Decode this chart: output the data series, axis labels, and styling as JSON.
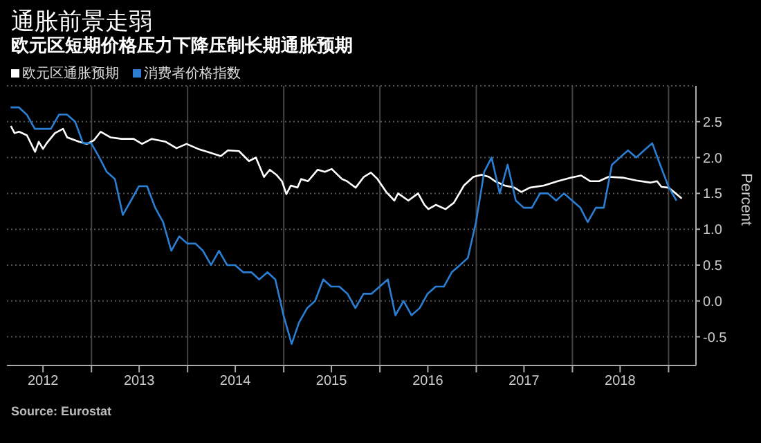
{
  "chart_data": {
    "type": "line",
    "title": "通胀前景走弱",
    "subtitle": "欧元区短期价格压力下降压制长期通胀预期",
    "ylabel": "Percent",
    "annotations": [
      "Source: Eurostat"
    ],
    "legend": "top left",
    "grid": true,
    "marker": "none",
    "line_style": "solid",
    "xlim": [
      "2012-02-15",
      "2019-04-15"
    ],
    "xticks": [
      {
        "value": "2012-07-01",
        "label": "2012"
      },
      {
        "value": "2013-01-01",
        "label": null
      },
      {
        "value": "2013-07-01",
        "label": "2013"
      },
      {
        "value": "2014-01-01",
        "label": null
      },
      {
        "value": "2014-07-01",
        "label": "2014"
      },
      {
        "value": "2015-01-01",
        "label": null
      },
      {
        "value": "2015-07-01",
        "label": "2015"
      },
      {
        "value": "2016-01-01",
        "label": null
      },
      {
        "value": "2016-07-01",
        "label": "2016"
      },
      {
        "value": "2017-01-01",
        "label": null
      },
      {
        "value": "2017-07-01",
        "label": "2017"
      },
      {
        "value": "2018-01-01",
        "label": null
      },
      {
        "value": "2018-07-01",
        "label": "2018"
      },
      {
        "value": "2019-01-01",
        "label": null
      }
    ],
    "ylim": [
      -0.9,
      3.0
    ],
    "yticks": [
      {
        "value": -0.5,
        "label": "-0.5"
      },
      {
        "value": 0,
        "label": "0.0"
      },
      {
        "value": 0.5,
        "label": "0.5"
      },
      {
        "value": 1,
        "label": "1.0"
      },
      {
        "value": 1.5,
        "label": "1.5"
      },
      {
        "value": 2,
        "label": "2.0"
      },
      {
        "value": 2.5,
        "label": "2.5"
      }
    ],
    "series": [
      {
        "name": "欧元区通胀预期",
        "color": "#ffffff",
        "x": [
          "2012-03-01",
          "2012-03-15",
          "2012-04-01",
          "2012-05-01",
          "2012-06-01",
          "2012-06-15",
          "2012-07-01",
          "2012-07-15",
          "2012-08-15",
          "2012-09-15",
          "2012-10-01",
          "2012-11-15",
          "2012-12-15",
          "2013-01-10",
          "2013-02-05",
          "2013-03-15",
          "2013-04-25",
          "2013-06-10",
          "2013-07-12",
          "2013-08-18",
          "2013-10-10",
          "2013-11-20",
          "2013-12-28",
          "2014-02-10",
          "2014-03-25",
          "2014-05-07",
          "2014-06-03",
          "2014-07-15",
          "2014-08-22",
          "2014-09-17",
          "2014-10-18",
          "2014-11-09",
          "2014-12-04",
          "2014-12-25",
          "2015-01-11",
          "2015-01-28",
          "2015-02-22",
          "2015-03-08",
          "2015-04-03",
          "2015-05-10",
          "2015-06-06",
          "2015-07-02",
          "2015-08-10",
          "2015-08-29",
          "2015-10-01",
          "2015-11-01",
          "2015-11-28",
          "2015-12-23",
          "2016-01-25",
          "2016-02-25",
          "2016-03-10",
          "2016-04-18",
          "2016-05-25",
          "2016-06-18",
          "2016-07-03",
          "2016-08-01",
          "2016-09-06",
          "2016-10-08",
          "2016-11-15",
          "2016-12-21",
          "2017-01-21",
          "2017-02-18",
          "2017-03-13",
          "2017-04-18",
          "2017-05-26",
          "2017-06-21",
          "2017-07-23",
          "2017-09-15",
          "2017-11-06",
          "2017-12-28",
          "2018-02-03",
          "2018-03-10",
          "2018-04-12",
          "2018-05-18",
          "2018-07-10",
          "2018-09-01",
          "2018-10-25",
          "2018-11-18",
          "2018-12-05",
          "2019-01-01",
          "2019-01-28",
          "2019-02-20"
        ],
        "values": [
          2.44,
          2.34,
          2.36,
          2.31,
          2.08,
          2.22,
          2.12,
          2.2,
          2.34,
          2.4,
          2.28,
          2.22,
          2.19,
          2.24,
          2.36,
          2.28,
          2.26,
          2.26,
          2.19,
          2.26,
          2.22,
          2.13,
          2.19,
          2.12,
          2.07,
          2.02,
          2.1,
          2.09,
          1.95,
          2.0,
          1.73,
          1.83,
          1.76,
          1.67,
          1.49,
          1.61,
          1.58,
          1.7,
          1.67,
          1.83,
          1.8,
          1.84,
          1.7,
          1.67,
          1.58,
          1.73,
          1.79,
          1.7,
          1.52,
          1.4,
          1.5,
          1.4,
          1.5,
          1.34,
          1.28,
          1.34,
          1.28,
          1.37,
          1.61,
          1.73,
          1.76,
          1.73,
          1.67,
          1.61,
          1.58,
          1.52,
          1.58,
          1.61,
          1.67,
          1.72,
          1.75,
          1.67,
          1.67,
          1.73,
          1.72,
          1.68,
          1.65,
          1.67,
          1.59,
          1.58,
          1.5,
          1.43
        ]
      },
      {
        "name": "消费者价格指数",
        "color": "#2a7fd4",
        "x": [
          "2012-02-29",
          "2012-03-31",
          "2012-04-30",
          "2012-05-31",
          "2012-06-30",
          "2012-07-31",
          "2012-08-31",
          "2012-09-30",
          "2012-10-31",
          "2012-11-30",
          "2012-12-31",
          "2013-01-31",
          "2013-02-28",
          "2013-03-31",
          "2013-04-30",
          "2013-05-31",
          "2013-06-30",
          "2013-07-31",
          "2013-08-31",
          "2013-09-30",
          "2013-10-31",
          "2013-11-30",
          "2013-12-31",
          "2014-01-31",
          "2014-02-28",
          "2014-03-31",
          "2014-04-30",
          "2014-05-31",
          "2014-06-30",
          "2014-07-31",
          "2014-08-31",
          "2014-09-30",
          "2014-10-31",
          "2014-11-30",
          "2014-12-31",
          "2015-01-31",
          "2015-02-28",
          "2015-03-31",
          "2015-04-30",
          "2015-05-31",
          "2015-06-30",
          "2015-07-31",
          "2015-08-31",
          "2015-09-30",
          "2015-10-31",
          "2015-11-30",
          "2015-12-31",
          "2016-01-31",
          "2016-02-29",
          "2016-03-31",
          "2016-04-30",
          "2016-05-31",
          "2016-06-30",
          "2016-07-31",
          "2016-08-31",
          "2016-09-30",
          "2016-10-31",
          "2016-11-30",
          "2016-12-31",
          "2017-01-31",
          "2017-02-28",
          "2017-03-31",
          "2017-04-30",
          "2017-05-31",
          "2017-06-30",
          "2017-07-31",
          "2017-08-31",
          "2017-09-30",
          "2017-10-31",
          "2017-11-30",
          "2017-12-31",
          "2018-01-31",
          "2018-02-28",
          "2018-03-31",
          "2018-04-30",
          "2018-05-31",
          "2018-06-30",
          "2018-07-31",
          "2018-08-31",
          "2018-09-30",
          "2018-10-31",
          "2018-11-30",
          "2018-12-31",
          "2019-01-31"
        ],
        "values": [
          2.7,
          2.7,
          2.6,
          2.4,
          2.4,
          2.4,
          2.6,
          2.6,
          2.5,
          2.2,
          2.2,
          2.0,
          1.8,
          1.7,
          1.2,
          1.4,
          1.6,
          1.6,
          1.3,
          1.1,
          0.7,
          0.9,
          0.8,
          0.8,
          0.7,
          0.5,
          0.7,
          0.5,
          0.5,
          0.4,
          0.4,
          0.3,
          0.4,
          0.3,
          -0.2,
          -0.6,
          -0.3,
          -0.1,
          0.0,
          0.3,
          0.2,
          0.2,
          0.1,
          -0.1,
          0.1,
          0.1,
          0.2,
          0.3,
          -0.2,
          0.0,
          -0.2,
          -0.1,
          0.1,
          0.2,
          0.2,
          0.4,
          0.5,
          0.6,
          1.1,
          1.8,
          2.0,
          1.5,
          1.9,
          1.4,
          1.3,
          1.3,
          1.5,
          1.5,
          1.4,
          1.5,
          1.4,
          1.3,
          1.1,
          1.3,
          1.3,
          1.9,
          2.0,
          2.1,
          2.0,
          2.1,
          2.2,
          1.9,
          1.6,
          1.4
        ]
      }
    ]
  }
}
